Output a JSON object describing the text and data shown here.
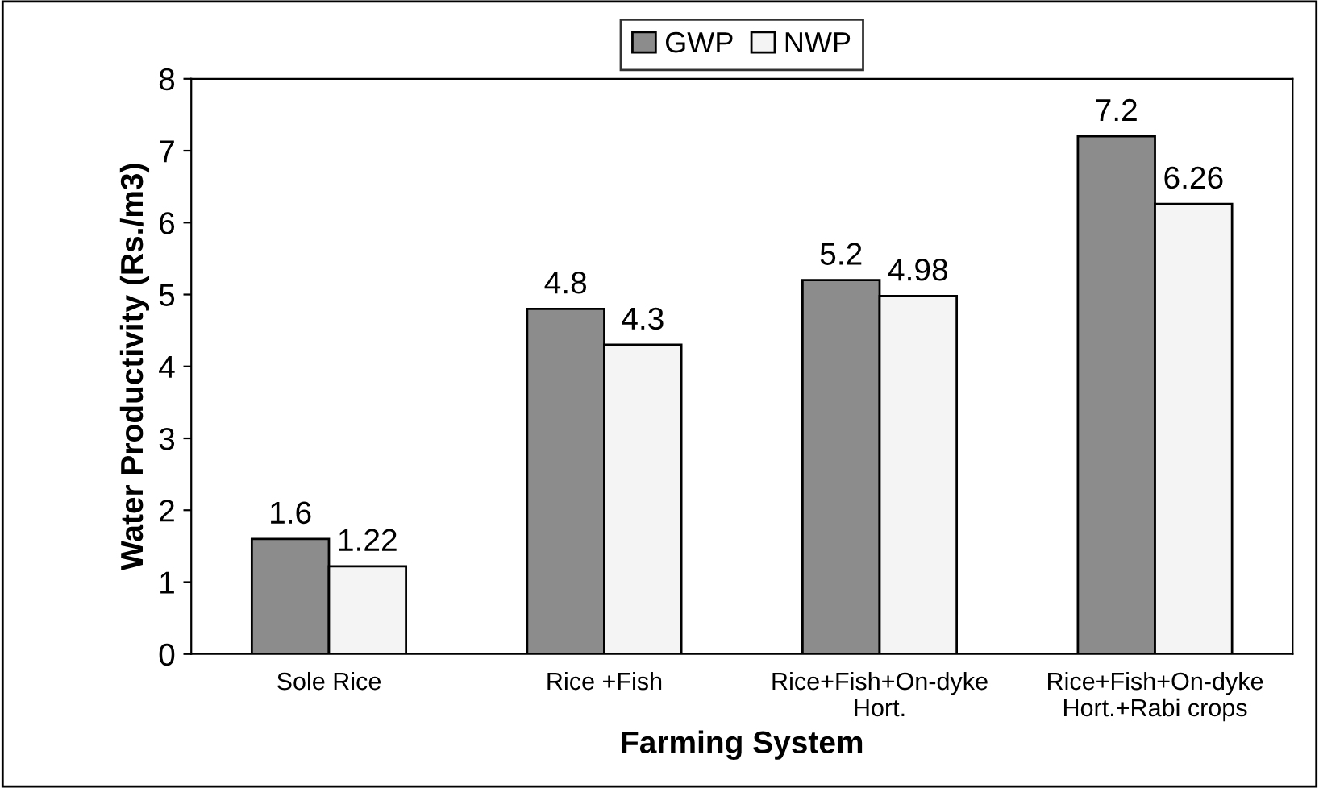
{
  "chart_data": {
    "type": "bar",
    "xlabel": "Farming System",
    "ylabel": "Water Productivity (Rs./m3)",
    "categories": [
      "Sole Rice",
      "Rice +Fish",
      "Rice+Fish+On-dyke\nHort.",
      "Rice+Fish+On-dyke\nHort.+Rabi crops"
    ],
    "series": [
      {
        "name": "GWP",
        "color": "#8c8c8c",
        "values": [
          1.6,
          4.8,
          5.2,
          7.2
        ]
      },
      {
        "name": "NWP",
        "color": "#f4f4f4",
        "values": [
          1.22,
          4.3,
          4.98,
          6.26
        ]
      }
    ],
    "ylim": [
      0,
      8
    ],
    "yticks": [
      0,
      1,
      2,
      3,
      4,
      5,
      6,
      7,
      8
    ],
    "grid": false,
    "legend": "top",
    "data_labels": true
  }
}
